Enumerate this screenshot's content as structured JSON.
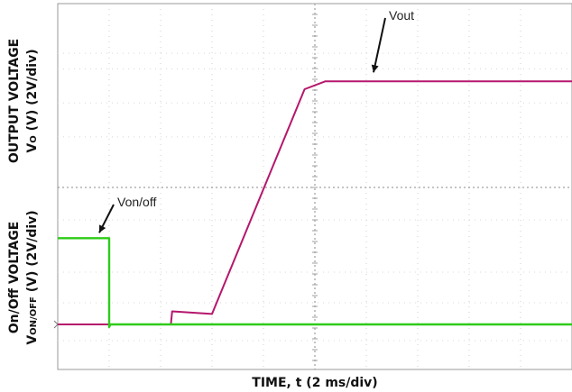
{
  "chart_data": {
    "type": "line",
    "xlabel": "TIME, t (2 ms/div)",
    "ylabel_top_line1": "OUTPUT VOLTAGE",
    "ylabel_top_line2_prefix": "V",
    "ylabel_top_line2_sub": "O",
    "ylabel_top_line2_suffix": " (V) (2V/div)",
    "ylabel_bottom_line1": "On/Off VOLTAGE",
    "ylabel_bottom_line2_prefix": "V",
    "ylabel_bottom_line2_sub": "ON/OFF",
    "ylabel_bottom_line2_suffix": " (V) (2V/div)",
    "x_unit": "ms",
    "x_per_div": 2,
    "x_divisions": 10,
    "y_per_div": 2,
    "grid": true,
    "series": [
      {
        "name": "Vout",
        "color": "#b5176b",
        "x": [
          0,
          2.4,
          4.4,
          4.45,
          6.0,
          9.6,
          10.4,
          20.0
        ],
        "y": [
          0,
          0,
          0,
          0.5,
          0.4,
          9.0,
          9.3,
          9.3
        ]
      },
      {
        "name": "Von/off",
        "color": "#2ecc1a",
        "x": [
          0,
          2.0,
          2.0,
          2.05,
          20.0
        ],
        "y": [
          3.3,
          3.3,
          -0.1,
          0,
          0
        ]
      }
    ],
    "annotations": [
      {
        "text": "Vout",
        "series": "Vout"
      },
      {
        "text": "Von/off",
        "series": "Von/off"
      }
    ]
  }
}
